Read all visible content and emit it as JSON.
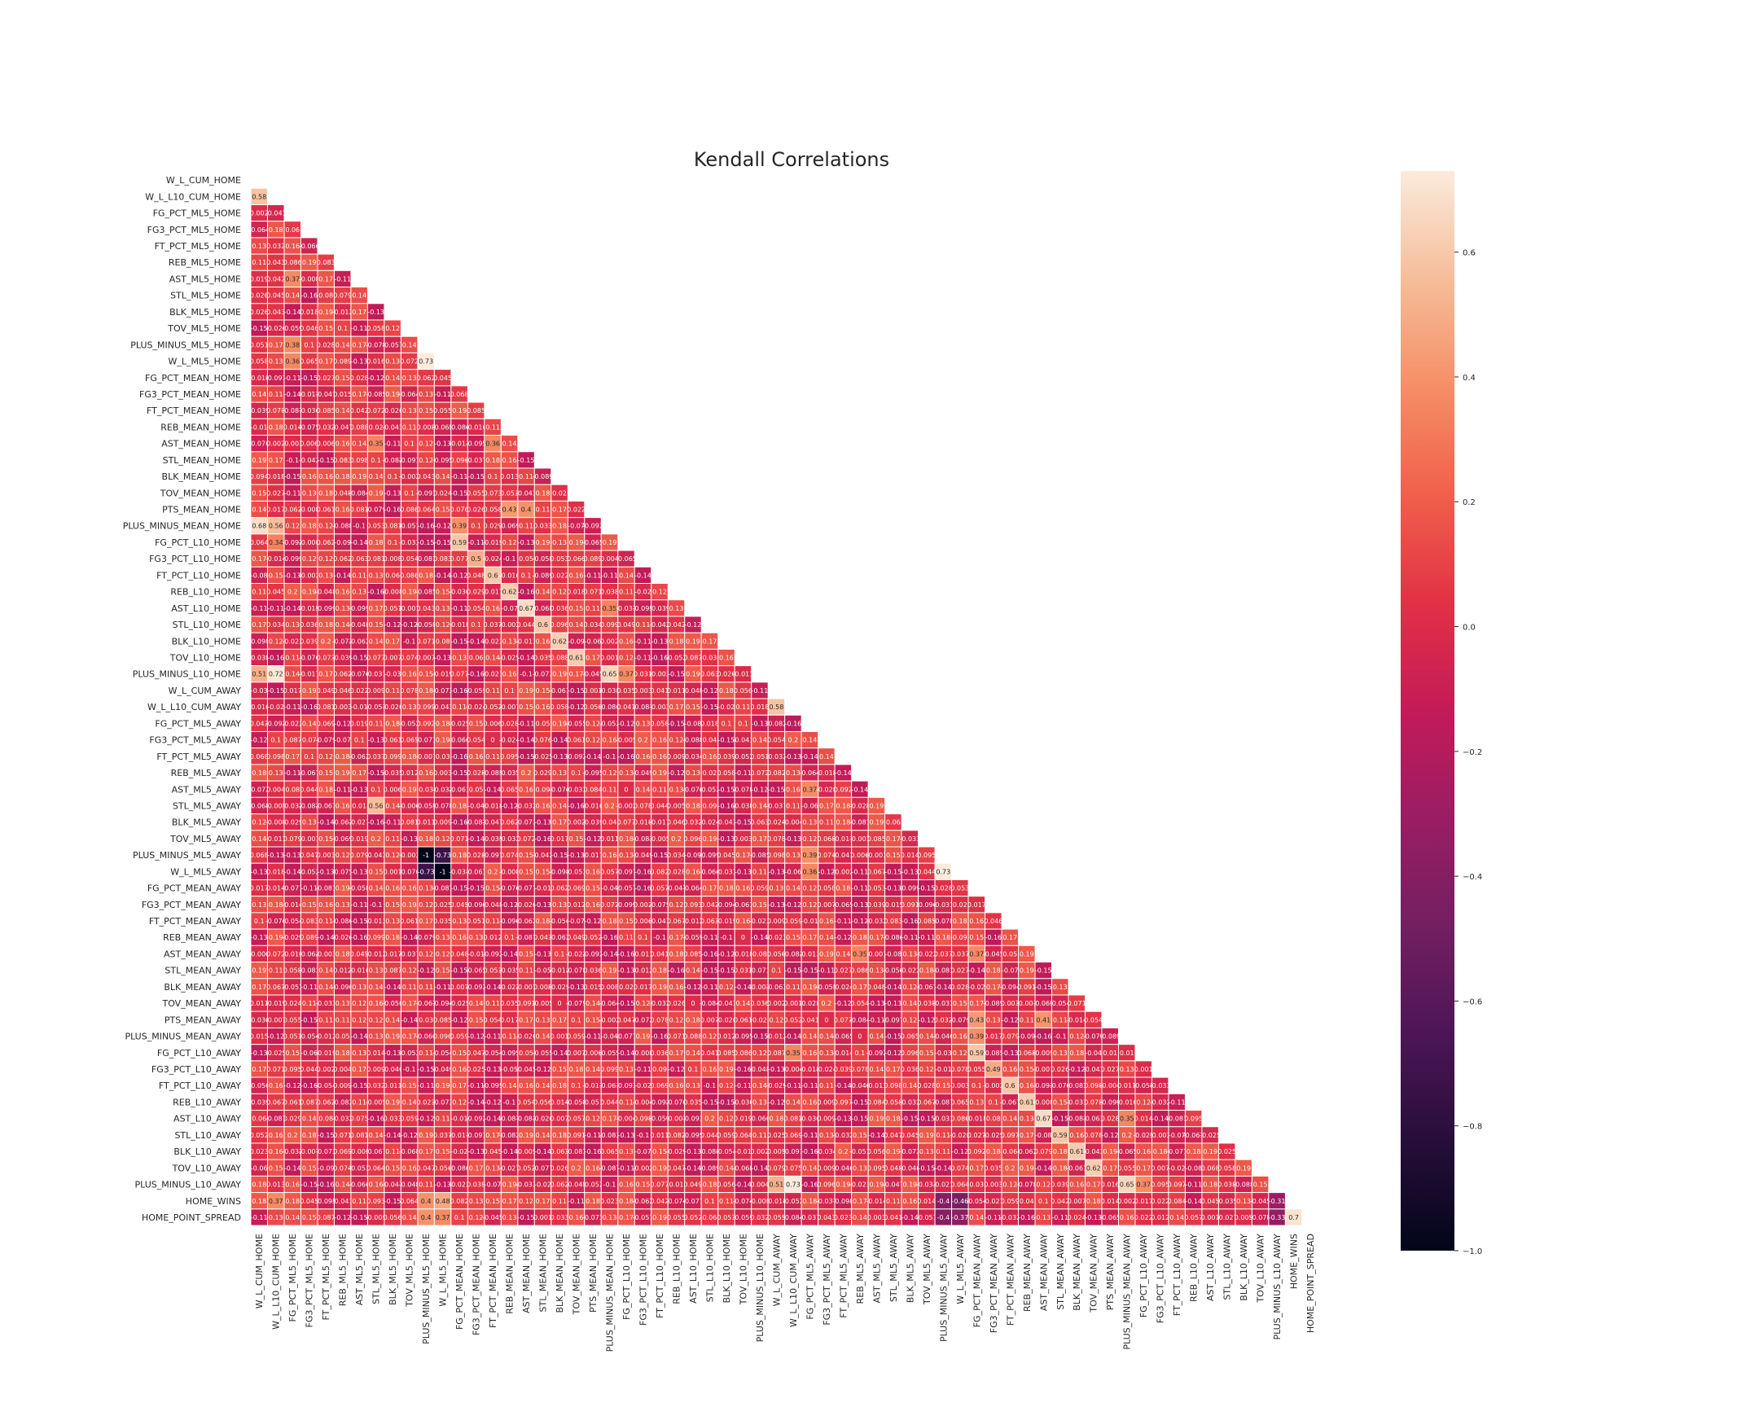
{
  "chart_data": {
    "type": "heatmap",
    "title": "Kendall Correlations",
    "variables": [
      "W_L_CUM_HOME",
      "W_L_L10_CUM_HOME",
      "FG_PCT_ML5_HOME",
      "FG3_PCT_ML5_HOME",
      "FT_PCT_ML5_HOME",
      "REB_ML5_HOME",
      "AST_ML5_HOME",
      "STL_ML5_HOME",
      "BLK_ML5_HOME",
      "TOV_ML5_HOME",
      "PLUS_MINUS_ML5_HOME",
      "W_L_ML5_HOME",
      "FG_PCT_MEAN_HOME",
      "FG3_PCT_MEAN_HOME",
      "FT_PCT_MEAN_HOME",
      "REB_MEAN_HOME",
      "AST_MEAN_HOME",
      "STL_MEAN_HOME",
      "BLK_MEAN_HOME",
      "TOV_MEAN_HOME",
      "PTS_MEAN_HOME",
      "PLUS_MINUS_MEAN_HOME",
      "FG_PCT_L10_HOME",
      "FG3_PCT_L10_HOME",
      "FT_PCT_L10_HOME",
      "REB_L10_HOME",
      "AST_L10_HOME",
      "STL_L10_HOME",
      "BLK_L10_HOME",
      "TOV_L10_HOME",
      "PLUS_MINUS_L10_HOME",
      "W_L_CUM_AWAY",
      "W_L_L10_CUM_AWAY",
      "FG_PCT_ML5_AWAY",
      "FG3_PCT_ML5_AWAY",
      "FT_PCT_ML5_AWAY",
      "REB_ML5_AWAY",
      "AST_ML5_AWAY",
      "STL_ML5_AWAY",
      "BLK_ML5_AWAY",
      "TOV_ML5_AWAY",
      "PLUS_MINUS_ML5_AWAY",
      "W_L_ML5_AWAY",
      "FG_PCT_MEAN_AWAY",
      "FG3_PCT_MEAN_AWAY",
      "FT_PCT_MEAN_AWAY",
      "REB_MEAN_AWAY",
      "AST_MEAN_AWAY",
      "STL_MEAN_AWAY",
      "BLK_MEAN_AWAY",
      "TOV_MEAN_AWAY",
      "PTS_MEAN_AWAY",
      "PLUS_MINUS_MEAN_AWAY",
      "FG_PCT_L10_AWAY",
      "FG3_PCT_L10_AWAY",
      "FT_PCT_L10_AWAY",
      "REB_L10_AWAY",
      "AST_L10_AWAY",
      "STL_L10_AWAY",
      "BLK_L10_AWAY",
      "TOV_L10_AWAY",
      "PLUS_MINUS_L10_AWAY",
      "HOME_WINS",
      "HOME_POINT_SPREAD"
    ],
    "key_cells": [
      {
        "row": 1,
        "col": 0,
        "value": 0.58
      },
      {
        "row": 6,
        "col": 2,
        "value": 0.37
      },
      {
        "row": 10,
        "col": 2,
        "value": 0.38
      },
      {
        "row": 11,
        "col": 2,
        "value": 0.36
      },
      {
        "row": 11,
        "col": 10,
        "value": 0.73
      },
      {
        "row": 16,
        "col": 14,
        "value": 0.36
      },
      {
        "row": 16,
        "col": 7,
        "value": 0.35
      },
      {
        "row": 20,
        "col": 15,
        "value": 0.43
      },
      {
        "row": 20,
        "col": 16,
        "value": 0.4
      },
      {
        "row": 21,
        "col": 0,
        "value": 0.68
      },
      {
        "row": 21,
        "col": 1,
        "value": 0.56
      },
      {
        "row": 21,
        "col": 12,
        "value": 0.39
      },
      {
        "row": 22,
        "col": 1,
        "value": 0.34
      },
      {
        "row": 22,
        "col": 12,
        "value": 0.59
      },
      {
        "row": 23,
        "col": 13,
        "value": 0.5
      },
      {
        "row": 24,
        "col": 14,
        "value": 0.6
      },
      {
        "row": 25,
        "col": 15,
        "value": 0.62
      },
      {
        "row": 26,
        "col": 16,
        "value": 0.67
      },
      {
        "row": 26,
        "col": 21,
        "value": 0.35
      },
      {
        "row": 27,
        "col": 17,
        "value": 0.6
      },
      {
        "row": 28,
        "col": 18,
        "value": 0.62
      },
      {
        "row": 29,
        "col": 19,
        "value": 0.61
      },
      {
        "row": 30,
        "col": 0,
        "value": 0.51
      },
      {
        "row": 30,
        "col": 1,
        "value": 0.72
      },
      {
        "row": 30,
        "col": 21,
        "value": 0.65
      },
      {
        "row": 30,
        "col": 22,
        "value": 0.37
      },
      {
        "row": 32,
        "col": 31,
        "value": 0.58
      },
      {
        "row": 37,
        "col": 33,
        "value": 0.37
      },
      {
        "row": 38,
        "col": 7,
        "value": 0.56
      },
      {
        "row": 41,
        "col": 10,
        "value": -1
      },
      {
        "row": 41,
        "col": 11,
        "value": -0.73
      },
      {
        "row": 41,
        "col": 33,
        "value": 0.39
      },
      {
        "row": 42,
        "col": 10,
        "value": -0.73
      },
      {
        "row": 42,
        "col": 11,
        "value": -1
      },
      {
        "row": 42,
        "col": 33,
        "value": 0.36
      },
      {
        "row": 42,
        "col": 41,
        "value": 0.73
      },
      {
        "row": 47,
        "col": 36,
        "value": 0.35
      },
      {
        "row": 47,
        "col": 43,
        "value": 0.37
      },
      {
        "row": 51,
        "col": 43,
        "value": 0.43
      },
      {
        "row": 51,
        "col": 47,
        "value": 0.41
      },
      {
        "row": 52,
        "col": 43,
        "value": 0.39
      },
      {
        "row": 53,
        "col": 32,
        "value": 0.35
      },
      {
        "row": 53,
        "col": 43,
        "value": 0.59
      },
      {
        "row": 54,
        "col": 44,
        "value": 0.49
      },
      {
        "row": 55,
        "col": 45,
        "value": 0.6
      },
      {
        "row": 56,
        "col": 46,
        "value": 0.61
      },
      {
        "row": 57,
        "col": 47,
        "value": 0.67
      },
      {
        "row": 57,
        "col": 52,
        "value": 0.35
      },
      {
        "row": 58,
        "col": 48,
        "value": 0.59
      },
      {
        "row": 59,
        "col": 49,
        "value": 0.61
      },
      {
        "row": 60,
        "col": 50,
        "value": 0.62
      },
      {
        "row": 61,
        "col": 31,
        "value": 0.51
      },
      {
        "row": 61,
        "col": 32,
        "value": 0.73
      },
      {
        "row": 61,
        "col": 52,
        "value": 0.65
      },
      {
        "row": 61,
        "col": 53,
        "value": 0.37
      },
      {
        "row": 62,
        "col": 1,
        "value": 0.37
      },
      {
        "row": 62,
        "col": 10,
        "value": 0.4
      },
      {
        "row": 62,
        "col": 11,
        "value": 0.48
      },
      {
        "row": 62,
        "col": 41,
        "value": -0.4
      },
      {
        "row": 62,
        "col": 42,
        "value": -0.46
      },
      {
        "row": 62,
        "col": 61,
        "value": -0.31
      },
      {
        "row": 63,
        "col": 10,
        "value": 0.4
      },
      {
        "row": 63,
        "col": 11,
        "value": 0.37
      },
      {
        "row": 63,
        "col": 41,
        "value": -0.4
      },
      {
        "row": 63,
        "col": 42,
        "value": -0.37
      },
      {
        "row": 63,
        "col": 61,
        "value": -0.33
      },
      {
        "row": 63,
        "col": 62,
        "value": 0.7
      }
    ],
    "vmin": -1.0,
    "vmax": 0.73,
    "mask": "upper-triangle",
    "colormap": "rocket",
    "colorbar_ticks": [
      "0.6",
      "0.4",
      "0.2",
      "0.0",
      "−0.2",
      "−0.4",
      "−0.6",
      "−0.8",
      "−1.0"
    ],
    "colorbar_tick_values": [
      0.6,
      0.4,
      0.2,
      0.0,
      -0.2,
      -0.4,
      -0.6,
      -0.8,
      -1.0
    ]
  }
}
